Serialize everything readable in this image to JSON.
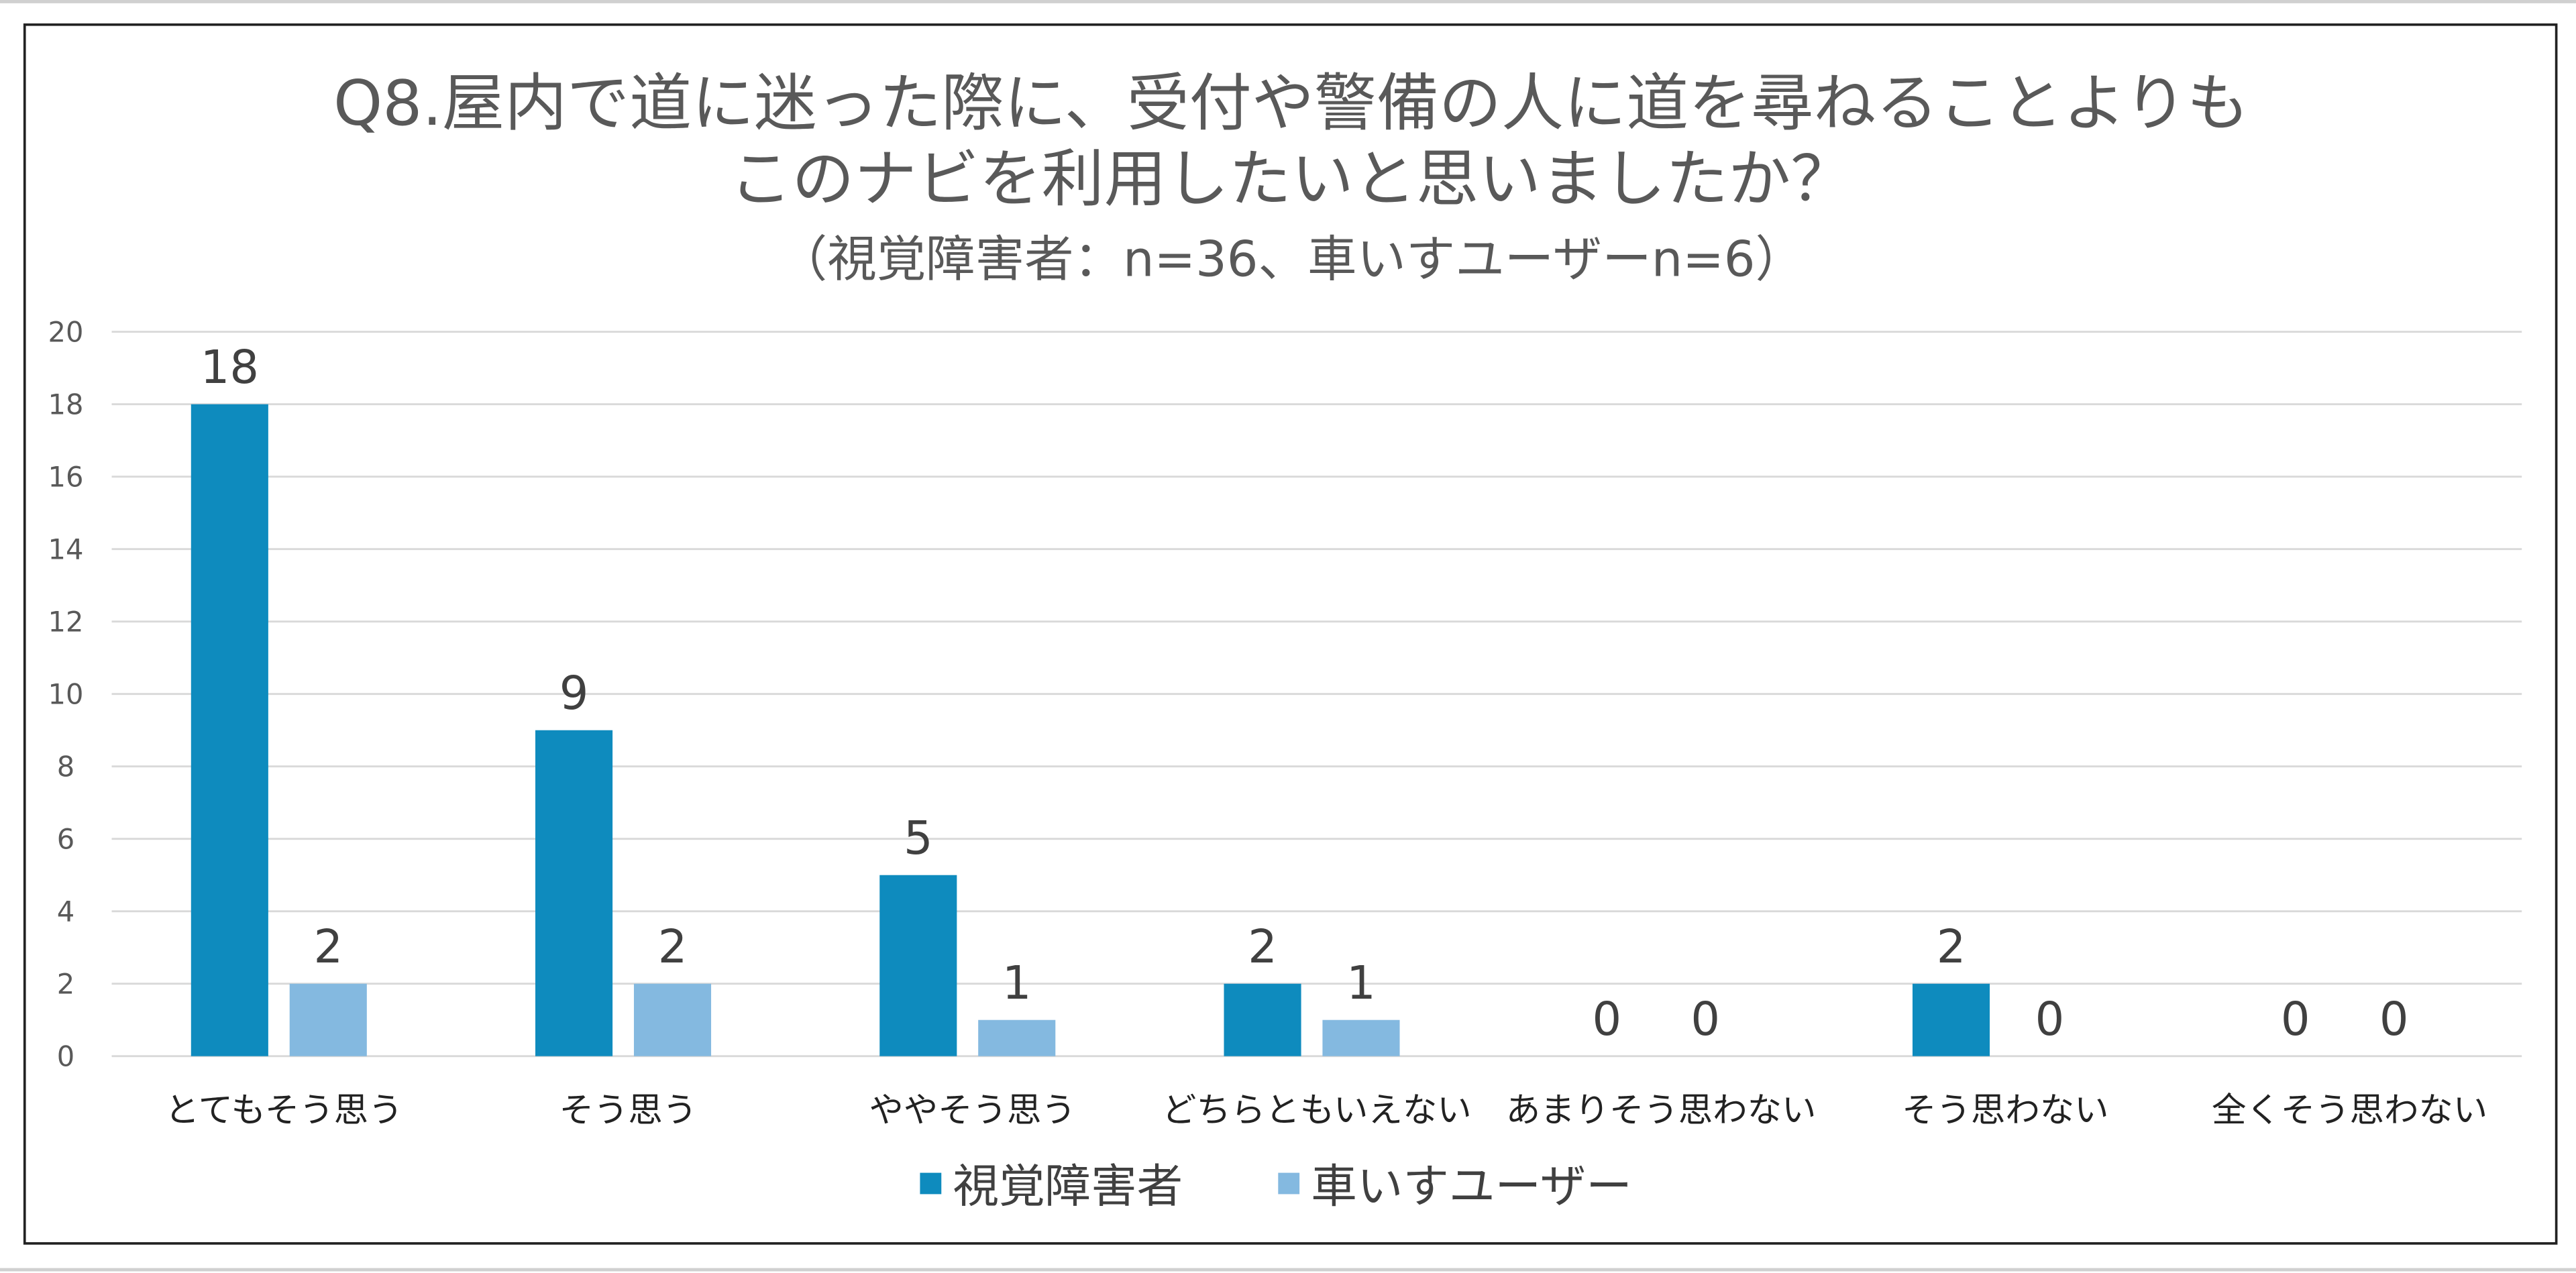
{
  "colors": {
    "visually_impaired": "#0E8BBE",
    "wheelchair": "#84B9E0",
    "grid": "#D9D9D9",
    "text": "#595959"
  },
  "chart_data": {
    "type": "bar",
    "title_lines": [
      "Q8.屋内で道に迷った際に、受付や警備の人に道を尋ねることよりも",
      "このナビを利用したいと思いましたか？"
    ],
    "subtitle": "（視覚障害者：n=36、車いすユーザーn=6）",
    "categories": [
      "とてもそう思う",
      "そう思う",
      "ややそう思う",
      "どちらともいえない",
      "あまりそう思わない",
      "そう思わない",
      "全くそう思わない"
    ],
    "series": [
      {
        "name": "視覚障害者",
        "values": [
          18,
          9,
          5,
          2,
          0,
          2,
          0
        ]
      },
      {
        "name": "車いすユーザー",
        "values": [
          2,
          2,
          1,
          1,
          0,
          0,
          0
        ]
      }
    ],
    "ylim": [
      0,
      20
    ],
    "yticks": [
      "0",
      "2",
      "4",
      "6",
      "8",
      "10",
      "12",
      "14",
      "16",
      "18",
      "20"
    ],
    "grid": true,
    "legend_position": "bottom",
    "data_labels": true
  }
}
